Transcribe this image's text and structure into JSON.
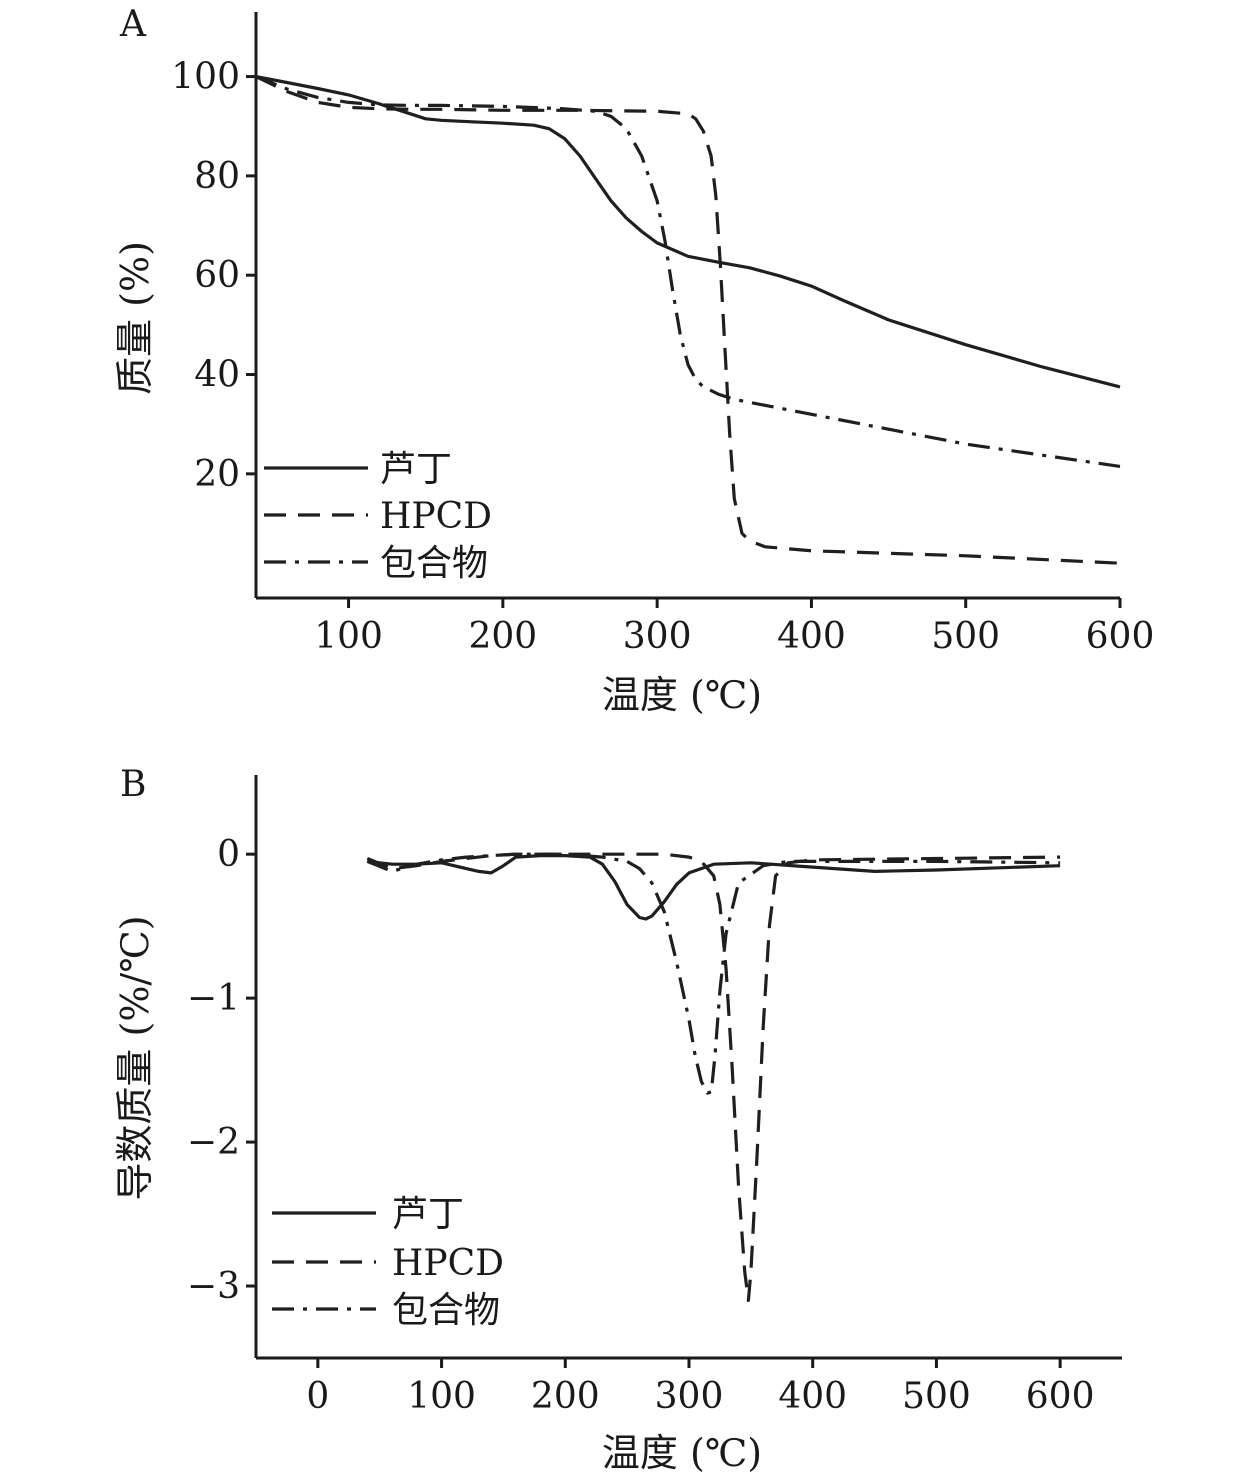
{
  "chart_data": [
    {
      "panel": "A",
      "type": "line",
      "xlabel": "温度 (℃)",
      "ylabel": "质量 (%)",
      "xlim": [
        40,
        600
      ],
      "ylim": [
        -5,
        113
      ],
      "xticks": [
        100,
        200,
        300,
        400,
        500,
        600
      ],
      "yticks": [
        20,
        40,
        60,
        80,
        100
      ],
      "legend_position": "bottom-left",
      "series": [
        {
          "name": "芦丁",
          "style": "solid",
          "x": [
            40,
            60,
            80,
            100,
            120,
            140,
            150,
            160,
            180,
            200,
            220,
            230,
            240,
            250,
            260,
            270,
            280,
            290,
            300,
            320,
            340,
            360,
            380,
            400,
            420,
            450,
            500,
            550,
            600
          ],
          "y": [
            100,
            98.8,
            97.6,
            96.3,
            94.5,
            92.5,
            91.5,
            91.2,
            90.9,
            90.6,
            90.2,
            89.5,
            87.5,
            84,
            79.5,
            75,
            71.5,
            68.8,
            66.5,
            63.8,
            62.6,
            61.5,
            59.8,
            57.8,
            55,
            51,
            46,
            41.5,
            37.5
          ]
        },
        {
          "name": "HPCD",
          "style": "dashed",
          "x": [
            40,
            60,
            80,
            100,
            120,
            140,
            160,
            200,
            250,
            300,
            320,
            325,
            330,
            335,
            338,
            341,
            344,
            347,
            350,
            355,
            360,
            370,
            400,
            500,
            600
          ],
          "y": [
            100,
            97,
            94.8,
            93.8,
            93.5,
            93.4,
            93.4,
            93.2,
            93.2,
            93,
            92.5,
            91.5,
            89,
            84,
            76,
            62,
            45,
            28,
            15,
            8,
            6.5,
            5.3,
            4.5,
            3.5,
            2
          ]
        },
        {
          "name": "包合物",
          "style": "dashdot",
          "x": [
            40,
            60,
            80,
            100,
            120,
            140,
            160,
            200,
            240,
            260,
            270,
            280,
            290,
            300,
            305,
            310,
            315,
            320,
            325,
            330,
            340,
            350,
            400,
            500,
            600
          ],
          "y": [
            100,
            97.5,
            95.8,
            94.8,
            94.3,
            94.2,
            94.2,
            94,
            93.5,
            93,
            92,
            89.5,
            84,
            75,
            67,
            57,
            48,
            42,
            39,
            37.5,
            36,
            35,
            32,
            26,
            21.5
          ]
        }
      ]
    },
    {
      "panel": "B",
      "type": "line",
      "xlabel": "温度 (℃)",
      "ylabel": "导数质量 (%/℃)",
      "xlim": [
        -50,
        650
      ],
      "ylim": [
        -3.5,
        0.55
      ],
      "xticks": [
        0,
        100,
        200,
        300,
        400,
        500,
        600
      ],
      "yticks": [
        0,
        -1,
        -2,
        -3
      ],
      "ytick_labels": [
        "0",
        "−1",
        "−2",
        "−3"
      ],
      "legend_position": "bottom-left",
      "series": [
        {
          "name": "芦丁",
          "style": "solid",
          "x": [
            40,
            60,
            80,
            100,
            120,
            130,
            140,
            150,
            160,
            180,
            200,
            220,
            230,
            240,
            250,
            260,
            265,
            270,
            280,
            290,
            300,
            320,
            350,
            400,
            450,
            500,
            600
          ],
          "y": [
            -0.05,
            -0.07,
            -0.07,
            -0.06,
            -0.1,
            -0.12,
            -0.13,
            -0.08,
            -0.02,
            -0.01,
            -0.01,
            -0.02,
            -0.07,
            -0.19,
            -0.35,
            -0.44,
            -0.45,
            -0.43,
            -0.33,
            -0.21,
            -0.13,
            -0.07,
            -0.06,
            -0.09,
            -0.12,
            -0.11,
            -0.08
          ]
        },
        {
          "name": "HPCD",
          "style": "dashed",
          "x": [
            40,
            60,
            80,
            100,
            120,
            140,
            160,
            200,
            240,
            280,
            300,
            310,
            320,
            325,
            330,
            335,
            340,
            345,
            348,
            350,
            355,
            360,
            365,
            370,
            380,
            400,
            500,
            600
          ],
          "y": [
            -0.03,
            -0.1,
            -0.08,
            -0.05,
            -0.03,
            -0.01,
            0,
            0,
            0,
            0,
            -0.02,
            -0.05,
            -0.15,
            -0.35,
            -0.8,
            -1.5,
            -2.3,
            -2.9,
            -3.1,
            -2.9,
            -2.1,
            -1.2,
            -0.5,
            -0.15,
            -0.06,
            -0.04,
            -0.03,
            -0.02
          ]
        },
        {
          "name": "包合物",
          "style": "dashdot",
          "x": [
            40,
            60,
            80,
            100,
            120,
            140,
            160,
            200,
            230,
            250,
            260,
            270,
            280,
            290,
            300,
            305,
            310,
            315,
            318,
            321,
            325,
            330,
            340,
            360,
            380,
            400,
            500,
            600
          ],
          "y": [
            -0.05,
            -0.12,
            -0.07,
            -0.04,
            -0.02,
            -0.01,
            0,
            0,
            -0.02,
            -0.05,
            -0.1,
            -0.2,
            -0.4,
            -0.75,
            -1.15,
            -1.4,
            -1.58,
            -1.66,
            -1.65,
            -1.4,
            -0.95,
            -0.55,
            -0.2,
            -0.08,
            -0.05,
            -0.05,
            -0.05,
            -0.06
          ]
        }
      ]
    }
  ],
  "panels": {
    "A": {
      "letter": "A",
      "xlabel": "温度 (℃)",
      "ylabel": "质量 (%)"
    },
    "B": {
      "letter": "B",
      "xlabel": "温度 (℃)",
      "ylabel": "导数质量 (%/℃)"
    }
  },
  "legend": [
    "芦丁",
    "HPCD",
    "包合物"
  ]
}
